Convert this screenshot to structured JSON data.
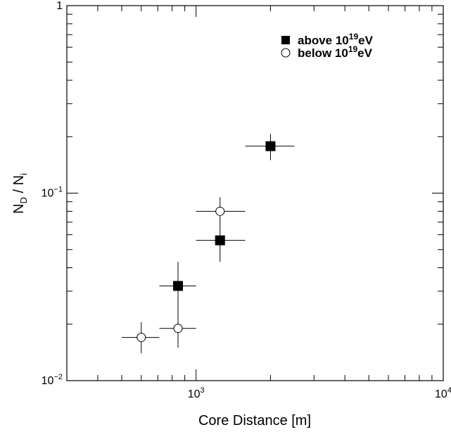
{
  "chart_data": {
    "type": "scatter",
    "xlabel": "Core Distance [m]",
    "ylabel_main": "N",
    "ylabel_sub1": "D",
    "ylabel_mid": " / N",
    "ylabel_sub2": "i",
    "xscale": "log",
    "yscale": "log",
    "xlim": [
      300,
      10000
    ],
    "ylim": [
      0.01,
      1
    ],
    "grid": false,
    "legend_position": "top-right",
    "x_ticks": [
      {
        "value": 1000,
        "base": "10",
        "exp": "3"
      },
      {
        "value": 10000,
        "base": "10",
        "exp": "4"
      }
    ],
    "y_ticks": [
      {
        "value": 0.01,
        "base": "10",
        "exp": "−2"
      },
      {
        "value": 0.1,
        "base": "10",
        "exp": "−1"
      },
      {
        "value": 1,
        "base": "1",
        "exp": ""
      }
    ],
    "series": [
      {
        "name_prefix": "above 10",
        "name_exp": "19",
        "name_suffix": "eV",
        "marker": "filled-square",
        "color": "#000000",
        "points": [
          {
            "x": 845,
            "y": 0.032,
            "xerr": [
              710,
              1000
            ],
            "yerr": [
              0.023,
              0.043
            ]
          },
          {
            "x": 1250,
            "y": 0.056,
            "xerr": [
              1000,
              1580
            ],
            "yerr": [
              0.043,
              0.068
            ]
          },
          {
            "x": 2000,
            "y": 0.178,
            "xerr": [
              1580,
              2500
            ],
            "yerr": [
              0.15,
              0.207
            ]
          }
        ]
      },
      {
        "name_prefix": "below 10",
        "name_exp": "19",
        "name_suffix": "eV",
        "marker": "open-circle",
        "color": "#000000",
        "points": [
          {
            "x": 600,
            "y": 0.017,
            "xerr": [
              500,
              710
            ],
            "yerr": [
              0.014,
              0.0205
            ]
          },
          {
            "x": 845,
            "y": 0.019,
            "xerr": [
              710,
              1000
            ],
            "yerr": [
              0.015,
              0.0235
            ]
          },
          {
            "x": 1250,
            "y": 0.08,
            "xerr": [
              1000,
              1580
            ],
            "yerr": [
              0.068,
              0.095
            ]
          }
        ]
      }
    ]
  }
}
